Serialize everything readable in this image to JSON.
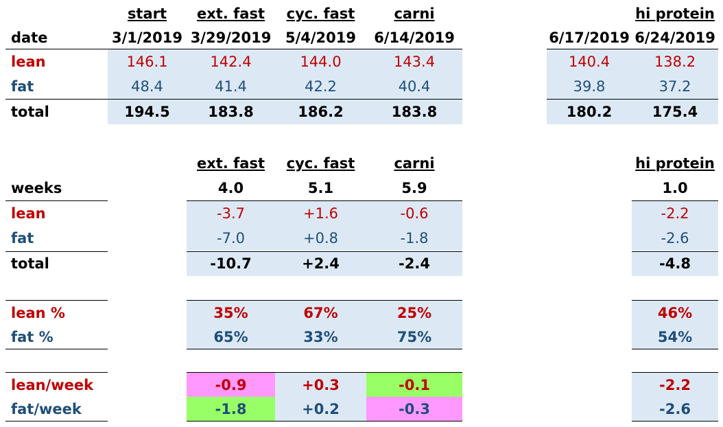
{
  "top": {
    "phases": [
      "start",
      "ext. fast",
      "cyc. fast",
      "carni",
      "",
      "hi protein"
    ],
    "date_label": "date",
    "dates": [
      "3/1/2019",
      "3/29/2019",
      "5/4/2019",
      "6/14/2019",
      "6/17/2019",
      "6/24/2019"
    ],
    "lean_label": "lean",
    "lean": [
      "146.1",
      "142.4",
      "144.0",
      "143.4",
      "140.4",
      "138.2"
    ],
    "fat_label": "fat",
    "fat": [
      "48.4",
      "41.4",
      "42.2",
      "40.4",
      "39.8",
      "37.2"
    ],
    "total_label": "total",
    "total": [
      "194.5",
      "183.8",
      "186.2",
      "183.8",
      "180.2",
      "175.4"
    ]
  },
  "changes": {
    "phases": [
      "ext. fast",
      "cyc. fast",
      "carni",
      "hi protein"
    ],
    "weeks_label": "weeks",
    "weeks": [
      "4.0",
      "5.1",
      "5.9",
      "1.0"
    ],
    "lean_label": "lean",
    "lean": [
      "-3.7",
      "+1.6",
      "-0.6",
      "-2.2"
    ],
    "fat_label": "fat",
    "fat": [
      "-7.0",
      "+0.8",
      "-1.8",
      "-2.6"
    ],
    "total_label": "total",
    "total": [
      "-10.7",
      "+2.4",
      "-2.4",
      "-4.8"
    ]
  },
  "percent": {
    "lean_label": "lean %",
    "lean": [
      "35%",
      "67%",
      "25%",
      "46%"
    ],
    "fat_label": "fat %",
    "fat": [
      "65%",
      "33%",
      "75%",
      "54%"
    ]
  },
  "rate": {
    "lean_label": "lean/week",
    "lean": [
      "-0.9",
      "+0.3",
      "-0.1",
      "-2.2"
    ],
    "fat_label": "fat/week",
    "fat": [
      "-1.8",
      "+0.2",
      "-0.3",
      "-2.6"
    ]
  },
  "colors": {
    "lean": "#c00000",
    "fat": "#1f4e79",
    "band": "#dce9f5",
    "worse": "#ff99ff",
    "better": "#99ff66"
  }
}
